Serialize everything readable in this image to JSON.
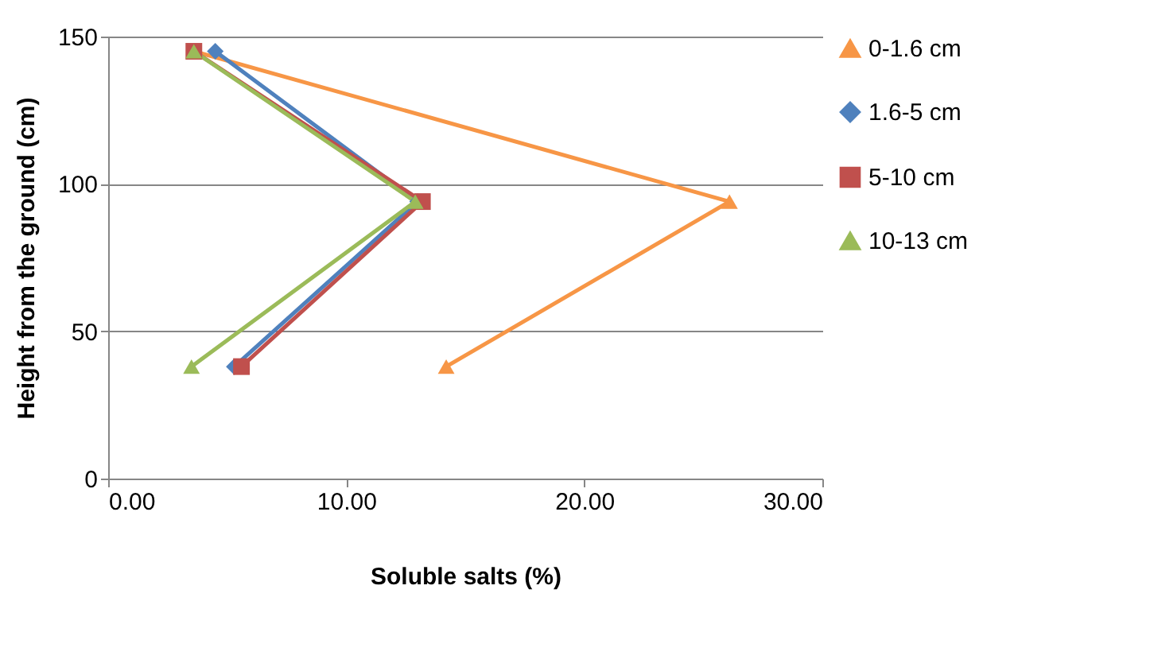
{
  "chart_data": {
    "type": "line",
    "xlabel": "Soluble salts (%)",
    "ylabel": "Height from the ground (cm)",
    "xlim": [
      0,
      30
    ],
    "xticks": [
      {
        "value": 0,
        "label": "0.00"
      },
      {
        "value": 10,
        "label": "10.00"
      },
      {
        "value": 20,
        "label": "20.00"
      },
      {
        "value": 30,
        "label": "30.00"
      }
    ],
    "ylim": [
      0,
      150
    ],
    "yticks": [
      0,
      50,
      100,
      150
    ],
    "grid": "y",
    "legend": "right",
    "series": [
      {
        "name": "0-1.6 cm",
        "color": "#f79646",
        "marker": "triangle",
        "x": [
          3.6,
          26.1,
          14.2
        ],
        "values": [
          145,
          94,
          38
        ]
      },
      {
        "name": "1.6-5 cm",
        "color": "#4f81bd",
        "marker": "diamond",
        "x": [
          4.5,
          13.0,
          5.3
        ],
        "values": [
          145,
          94,
          38
        ]
      },
      {
        "name": "5-10 cm",
        "color": "#c0504d",
        "marker": "square",
        "x": [
          3.6,
          13.2,
          5.6
        ],
        "values": [
          145,
          94,
          38
        ]
      },
      {
        "name": "10-13 cm",
        "color": "#9bbb59",
        "marker": "triangle",
        "x": [
          3.6,
          12.9,
          3.5
        ],
        "values": [
          145,
          94,
          38
        ]
      }
    ]
  }
}
